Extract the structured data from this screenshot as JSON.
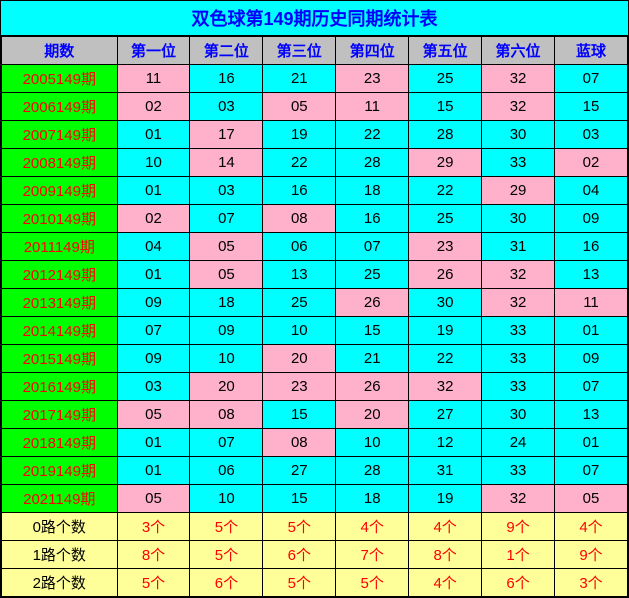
{
  "title": "双色球第149期历史同期统计表",
  "headers": [
    "期数",
    "第一位",
    "第二位",
    "第三位",
    "第四位",
    "第五位",
    "第六位",
    "蓝球"
  ],
  "colors": {
    "pink": "#ffb0cb",
    "cyan": "#00ffff",
    "green": "#00ff00",
    "yellow": "#ffff99",
    "gray": "#c0c0c0",
    "red_text": "#ff0000",
    "blue_text": "#0000ff",
    "black_text": "#000000",
    "border": "#000000"
  },
  "typography": {
    "title_fontsize": 18,
    "cell_fontsize": 15,
    "font_family": "SimSun"
  },
  "rows": [
    {
      "period": "2005149期",
      "cells": [
        {
          "v": "11",
          "c": "pink"
        },
        {
          "v": "16",
          "c": "cyan"
        },
        {
          "v": "21",
          "c": "cyan"
        },
        {
          "v": "23",
          "c": "pink"
        },
        {
          "v": "25",
          "c": "cyan"
        },
        {
          "v": "32",
          "c": "pink"
        },
        {
          "v": "07",
          "c": "cyan"
        }
      ]
    },
    {
      "period": "2006149期",
      "cells": [
        {
          "v": "02",
          "c": "pink"
        },
        {
          "v": "03",
          "c": "cyan"
        },
        {
          "v": "05",
          "c": "pink"
        },
        {
          "v": "11",
          "c": "pink"
        },
        {
          "v": "15",
          "c": "cyan"
        },
        {
          "v": "32",
          "c": "pink"
        },
        {
          "v": "15",
          "c": "cyan"
        }
      ]
    },
    {
      "period": "2007149期",
      "cells": [
        {
          "v": "01",
          "c": "cyan"
        },
        {
          "v": "17",
          "c": "pink"
        },
        {
          "v": "19",
          "c": "cyan"
        },
        {
          "v": "22",
          "c": "cyan"
        },
        {
          "v": "28",
          "c": "cyan"
        },
        {
          "v": "30",
          "c": "cyan"
        },
        {
          "v": "03",
          "c": "cyan"
        }
      ]
    },
    {
      "period": "2008149期",
      "cells": [
        {
          "v": "10",
          "c": "cyan"
        },
        {
          "v": "14",
          "c": "pink"
        },
        {
          "v": "22",
          "c": "cyan"
        },
        {
          "v": "28",
          "c": "cyan"
        },
        {
          "v": "29",
          "c": "pink"
        },
        {
          "v": "33",
          "c": "cyan"
        },
        {
          "v": "02",
          "c": "pink"
        }
      ]
    },
    {
      "period": "2009149期",
      "cells": [
        {
          "v": "01",
          "c": "cyan"
        },
        {
          "v": "03",
          "c": "cyan"
        },
        {
          "v": "16",
          "c": "cyan"
        },
        {
          "v": "18",
          "c": "cyan"
        },
        {
          "v": "22",
          "c": "cyan"
        },
        {
          "v": "29",
          "c": "pink"
        },
        {
          "v": "04",
          "c": "cyan"
        }
      ]
    },
    {
      "period": "2010149期",
      "cells": [
        {
          "v": "02",
          "c": "pink"
        },
        {
          "v": "07",
          "c": "cyan"
        },
        {
          "v": "08",
          "c": "pink"
        },
        {
          "v": "16",
          "c": "cyan"
        },
        {
          "v": "25",
          "c": "cyan"
        },
        {
          "v": "30",
          "c": "cyan"
        },
        {
          "v": "09",
          "c": "cyan"
        }
      ]
    },
    {
      "period": "2011149期",
      "cells": [
        {
          "v": "04",
          "c": "cyan"
        },
        {
          "v": "05",
          "c": "pink"
        },
        {
          "v": "06",
          "c": "cyan"
        },
        {
          "v": "07",
          "c": "cyan"
        },
        {
          "v": "23",
          "c": "pink"
        },
        {
          "v": "31",
          "c": "cyan"
        },
        {
          "v": "16",
          "c": "cyan"
        }
      ]
    },
    {
      "period": "2012149期",
      "cells": [
        {
          "v": "01",
          "c": "cyan"
        },
        {
          "v": "05",
          "c": "pink"
        },
        {
          "v": "13",
          "c": "cyan"
        },
        {
          "v": "25",
          "c": "cyan"
        },
        {
          "v": "26",
          "c": "pink"
        },
        {
          "v": "32",
          "c": "pink"
        },
        {
          "v": "13",
          "c": "cyan"
        }
      ]
    },
    {
      "period": "2013149期",
      "cells": [
        {
          "v": "09",
          "c": "cyan"
        },
        {
          "v": "18",
          "c": "cyan"
        },
        {
          "v": "25",
          "c": "cyan"
        },
        {
          "v": "26",
          "c": "pink"
        },
        {
          "v": "30",
          "c": "cyan"
        },
        {
          "v": "32",
          "c": "pink"
        },
        {
          "v": "11",
          "c": "pink"
        }
      ]
    },
    {
      "period": "2014149期",
      "cells": [
        {
          "v": "07",
          "c": "cyan"
        },
        {
          "v": "09",
          "c": "cyan"
        },
        {
          "v": "10",
          "c": "cyan"
        },
        {
          "v": "15",
          "c": "cyan"
        },
        {
          "v": "19",
          "c": "cyan"
        },
        {
          "v": "33",
          "c": "cyan"
        },
        {
          "v": "01",
          "c": "cyan"
        }
      ]
    },
    {
      "period": "2015149期",
      "cells": [
        {
          "v": "09",
          "c": "cyan"
        },
        {
          "v": "10",
          "c": "cyan"
        },
        {
          "v": "20",
          "c": "pink"
        },
        {
          "v": "21",
          "c": "cyan"
        },
        {
          "v": "22",
          "c": "cyan"
        },
        {
          "v": "33",
          "c": "cyan"
        },
        {
          "v": "09",
          "c": "cyan"
        }
      ]
    },
    {
      "period": "2016149期",
      "cells": [
        {
          "v": "03",
          "c": "cyan"
        },
        {
          "v": "20",
          "c": "pink"
        },
        {
          "v": "23",
          "c": "pink"
        },
        {
          "v": "26",
          "c": "pink"
        },
        {
          "v": "32",
          "c": "pink"
        },
        {
          "v": "33",
          "c": "cyan"
        },
        {
          "v": "07",
          "c": "cyan"
        }
      ]
    },
    {
      "period": "2017149期",
      "cells": [
        {
          "v": "05",
          "c": "pink"
        },
        {
          "v": "08",
          "c": "pink"
        },
        {
          "v": "15",
          "c": "cyan"
        },
        {
          "v": "20",
          "c": "pink"
        },
        {
          "v": "27",
          "c": "cyan"
        },
        {
          "v": "30",
          "c": "cyan"
        },
        {
          "v": "13",
          "c": "cyan"
        }
      ]
    },
    {
      "period": "2018149期",
      "cells": [
        {
          "v": "01",
          "c": "cyan"
        },
        {
          "v": "07",
          "c": "cyan"
        },
        {
          "v": "08",
          "c": "pink"
        },
        {
          "v": "10",
          "c": "cyan"
        },
        {
          "v": "12",
          "c": "cyan"
        },
        {
          "v": "24",
          "c": "cyan"
        },
        {
          "v": "01",
          "c": "cyan"
        }
      ]
    },
    {
      "period": "2019149期",
      "cells": [
        {
          "v": "01",
          "c": "cyan"
        },
        {
          "v": "06",
          "c": "cyan"
        },
        {
          "v": "27",
          "c": "cyan"
        },
        {
          "v": "28",
          "c": "cyan"
        },
        {
          "v": "31",
          "c": "cyan"
        },
        {
          "v": "33",
          "c": "cyan"
        },
        {
          "v": "07",
          "c": "cyan"
        }
      ]
    },
    {
      "period": "2021149期",
      "cells": [
        {
          "v": "05",
          "c": "pink"
        },
        {
          "v": "10",
          "c": "cyan"
        },
        {
          "v": "15",
          "c": "cyan"
        },
        {
          "v": "18",
          "c": "cyan"
        },
        {
          "v": "19",
          "c": "cyan"
        },
        {
          "v": "32",
          "c": "pink"
        },
        {
          "v": "05",
          "c": "pink"
        }
      ]
    }
  ],
  "summary": [
    {
      "label": "0路个数",
      "cells": [
        "3个",
        "5个",
        "5个",
        "4个",
        "4个",
        "9个",
        "4个"
      ]
    },
    {
      "label": "1路个数",
      "cells": [
        "8个",
        "5个",
        "6个",
        "7个",
        "8个",
        "1个",
        "9个"
      ]
    },
    {
      "label": "2路个数",
      "cells": [
        "5个",
        "6个",
        "5个",
        "5个",
        "4个",
        "6个",
        "3个"
      ]
    }
  ]
}
